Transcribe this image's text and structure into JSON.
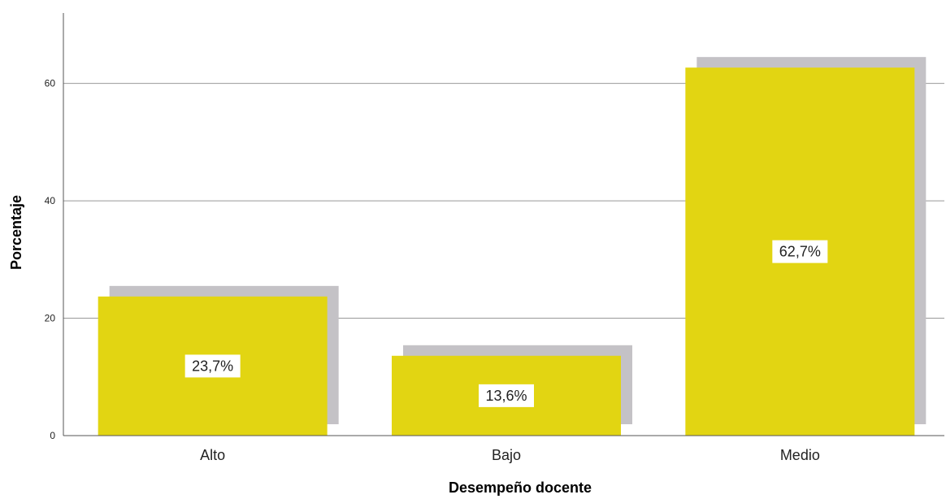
{
  "chart_data": {
    "type": "bar",
    "title": "",
    "xlabel": "Desempeño docente",
    "ylabel": "Porcentaje",
    "categories": [
      "Alto",
      "Bajo",
      "Medio"
    ],
    "values": [
      23.7,
      13.6,
      62.7
    ],
    "data_labels": [
      "23,7%",
      "13,6%",
      "62,7%"
    ],
    "yticks": [
      0,
      20,
      40,
      60
    ],
    "ylim": [
      0,
      72
    ],
    "grid": true,
    "legend": "none",
    "bar_color": "#e2d512",
    "shadow_color": "#c4c2c6",
    "grid_color": "#999999"
  }
}
